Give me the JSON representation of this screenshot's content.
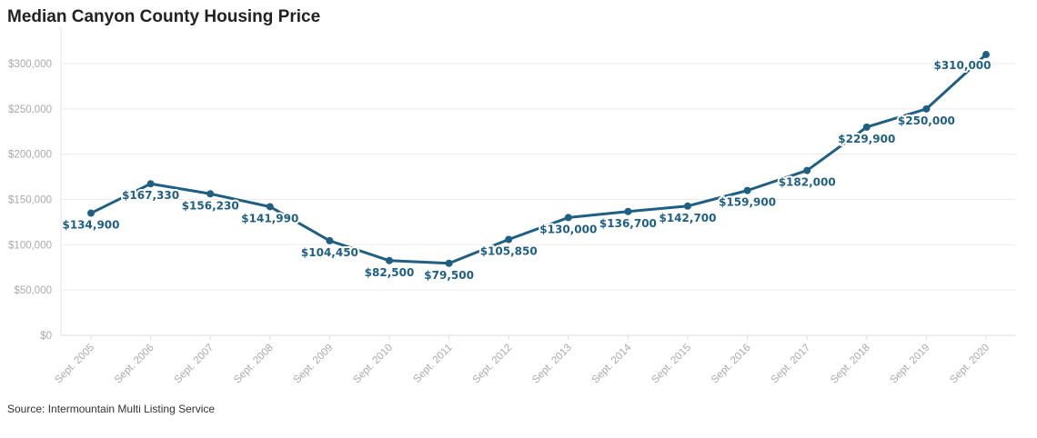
{
  "title": "Median Canyon County Housing Price",
  "source": "Source: Intermountain Multi Listing Service",
  "chart_data": {
    "type": "line",
    "title": "Median Canyon County Housing Price",
    "xlabel": "",
    "ylabel": "",
    "categories": [
      "Sept. 2005",
      "Sept. 2006",
      "Sept. 2007",
      "Sept. 2008",
      "Sept. 2009",
      "Sept. 2010",
      "Sept. 2011",
      "Sept. 2012",
      "Sept. 2013",
      "Sept. 2014",
      "Sept. 2015",
      "Sept. 2016",
      "Sept. 2017",
      "Sept. 2018",
      "Sept. 2019",
      "Sept. 2020"
    ],
    "values": [
      134900,
      167330,
      156230,
      141990,
      104450,
      82500,
      79500,
      105850,
      130000,
      136700,
      142700,
      159900,
      182000,
      229900,
      250000,
      310000
    ],
    "data_labels": [
      "$134,900",
      "$167,330",
      "$156,230",
      "$141,990",
      "$104,450",
      "$82,500",
      "$79,500",
      "$105,850",
      "$130,000",
      "$136,700",
      "$142,700",
      "$159,900",
      "$182,000",
      "$229,900",
      "$250,000",
      "$310,000"
    ],
    "ylim": [
      0,
      300000
    ],
    "yticks": [
      0,
      50000,
      100000,
      150000,
      200000,
      250000,
      300000
    ],
    "ytick_labels": [
      "$0",
      "$50,000",
      "$100,000",
      "$150,000",
      "$200,000",
      "$250,000",
      "$300,000"
    ],
    "grid": true,
    "line_color": "#1f5f84"
  }
}
